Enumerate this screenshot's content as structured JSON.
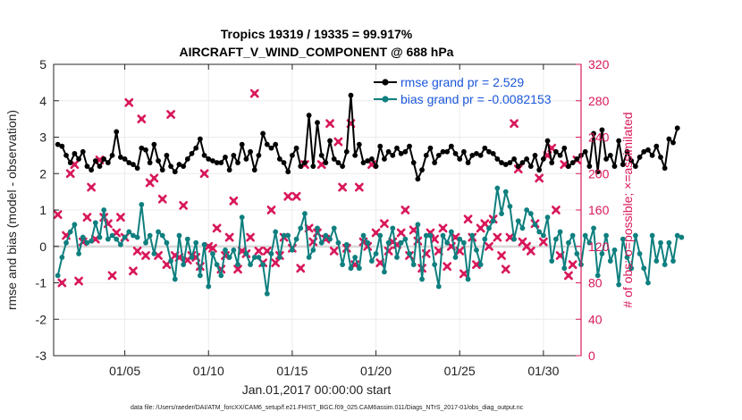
{
  "colors": {
    "rmse": "#000000",
    "bias": "#0f7f7f",
    "obs": "#d8185b",
    "legend_text": "#1a56db",
    "zero_line": "#b0b0b0",
    "axis": "#262626",
    "right_axis": "#d8185b"
  },
  "chart_data": {
    "type": "line",
    "title_line1": "Tropics 19319 / 19335 = 99.917%",
    "title_line2": "AIRCRAFT_V_WIND_COMPONENT @ 688 hPa",
    "xlabel": "Jan.01,2017 00:00:00 start",
    "ylabel_left": "rmse and bias (model - observation)",
    "ylabel_right": "# of obs: o=possible; ×=assimilated",
    "footer": "data file: /Users/raeder/DAI/ATM_forcXX/CAM6_setup/f.e21.FHIST_BGC.f09_025.CAM6assim.011/Diags_NTrS_2017-01/obs_diag_output.nc",
    "xlim": [
      0.75,
      32.25
    ],
    "xticks": [
      {
        "value": 5,
        "label": "01/05"
      },
      {
        "value": 10,
        "label": "01/10"
      },
      {
        "value": 15,
        "label": "01/15"
      },
      {
        "value": 20,
        "label": "01/20"
      },
      {
        "value": 25,
        "label": "01/25"
      },
      {
        "value": 30,
        "label": "01/30"
      }
    ],
    "ylim_left": [
      -3,
      5
    ],
    "yticks_left": [
      -3,
      -2,
      -1,
      0,
      1,
      2,
      3,
      4,
      5
    ],
    "ylim_right": [
      0,
      320
    ],
    "yticks_right": [
      0,
      40,
      80,
      120,
      160,
      200,
      240,
      280,
      320
    ],
    "legend": [
      {
        "series": "rmse",
        "label": "rmse grand pr = 2.529"
      },
      {
        "series": "bias",
        "label": "bias grand pr = -0.0082153"
      }
    ],
    "x_start": 1,
    "x_step": 0.25,
    "rmse": [
      2.8,
      2.75,
      2.5,
      2.3,
      2.55,
      2.4,
      2.6,
      2.2,
      2.1,
      2.35,
      2.2,
      2.4,
      2.3,
      2.5,
      3.15,
      2.45,
      2.4,
      2.3,
      2.25,
      2.15,
      2.7,
      2.65,
      2.3,
      2.8,
      2.35,
      2.1,
      2.5,
      2.2,
      2.05,
      2.25,
      2.2,
      2.4,
      2.55,
      2.7,
      2.95,
      2.5,
      2.4,
      2.35,
      2.3,
      2.3,
      2.45,
      2.1,
      2.5,
      2.3,
      2.8,
      2.4,
      2.6,
      2.1,
      2.5,
      3.1,
      2.8,
      2.7,
      2.8,
      2.4,
      2.3,
      2.05,
      2.5,
      2.7,
      2.2,
      2.3,
      3.6,
      2.2,
      3.4,
      2.5,
      2.3,
      2.9,
      2.4,
      2.3,
      2.2,
      2.6,
      4.15,
      2.5,
      2.8,
      2.3,
      2.35,
      2.4,
      2.2,
      2.75,
      2.4,
      2.6,
      2.5,
      2.7,
      2.55,
      2.6,
      2.75,
      2.3,
      1.85,
      2.1,
      2.5,
      2.7,
      2.3,
      2.5,
      2.6,
      2.6,
      2.75,
      2.55,
      2.4,
      2.6,
      2.3,
      2.5,
      2.55,
      2.5,
      2.7,
      2.6,
      2.55,
      2.4,
      2.3,
      2.25,
      2.3,
      2.4,
      2.2,
      2.3,
      2.4,
      2.2,
      2.5,
      2.1,
      2.4,
      2.9,
      2.3,
      2.6,
      2.5,
      2.7,
      2.2,
      2.3,
      2.4,
      2.5,
      2.6,
      2.2,
      3.1,
      2.05,
      3.2,
      2.4,
      2.5,
      2.2,
      2.9,
      2.25,
      2.6,
      2.35,
      2.2,
      2.45,
      2.6,
      2.65,
      2.5,
      2.75,
      2.45,
      2.15,
      2.95,
      2.85,
      3.25
    ],
    "bias": [
      -0.8,
      -0.3,
      0.1,
      0.4,
      0.6,
      -0.2,
      0.25,
      0.1,
      0.15,
      0.65,
      0.25,
      1.0,
      0.2,
      0.3,
      0.2,
      0.05,
      0.25,
      0.4,
      0.3,
      0.25,
      1.15,
      0.1,
      0.3,
      -0.2,
      0.4,
      0.3,
      0.1,
      -0.4,
      -0.9,
      0.3,
      -0.5,
      0.2,
      -0.3,
      0.1,
      -0.8,
      0.05,
      -1.1,
      -0.2,
      -0.5,
      -0.8,
      -0.1,
      -0.3,
      -0.1,
      -0.5,
      0.8,
      -0.2,
      -0.5,
      -0.3,
      -0.3,
      -0.5,
      -1.3,
      -0.2,
      0.4,
      -0.3,
      0.3,
      0.3,
      -0.1,
      0.2,
      0.5,
      0.9,
      -0.3,
      -0.1,
      0.5,
      0.1,
      0.3,
      0.2,
      0.5,
      0.1,
      -0.5,
      0.05,
      -0.6,
      -0.3,
      -0.6,
      0.3,
      0.1,
      -0.4,
      -0.2,
      0.3,
      -0.7,
      0.1,
      0.5,
      -0.3,
      0.1,
      0.2,
      -0.2,
      -0.5,
      0.6,
      -0.9,
      0.3,
      0.3,
      -0.5,
      -1.1,
      0.3,
      0.1,
      0.4,
      -0.3,
      0.2,
      0.1,
      -0.9,
      0.3,
      -0.1,
      -0.5,
      0.2,
      0.5,
      0.7,
      1.6,
      0.9,
      1.5,
      1.1,
      0.2,
      0.7,
      0.5,
      1.0,
      0.9,
      0.6,
      0.4,
      0.3,
      0.8,
      -0.4,
      0.2,
      0.4,
      -0.6,
      0.1,
      0.3,
      -0.2,
      -0.5,
      0.3,
      0.1,
      0.5,
      -0.8,
      -0.2,
      0.3,
      -0.4,
      -0.1,
      -1.05,
      0.2,
      -0.3,
      -0.6,
      0.3,
      -0.2,
      -0.6,
      -1.0,
      0.3,
      -0.4,
      0.1,
      -0.5,
      0.1,
      -0.4,
      0.3,
      0.25
    ],
    "obs_assimilated_points": [
      [
        1.0,
        155
      ],
      [
        1.25,
        80
      ],
      [
        1.5,
        132
      ],
      [
        1.75,
        200
      ],
      [
        2.0,
        210
      ],
      [
        2.25,
        82
      ],
      [
        2.5,
        125
      ],
      [
        2.75,
        152
      ],
      [
        3.0,
        185
      ],
      [
        3.25,
        128
      ],
      [
        3.5,
        215
      ],
      [
        3.75,
        152
      ],
      [
        4.0,
        145
      ],
      [
        4.25,
        88
      ],
      [
        4.5,
        135
      ],
      [
        4.75,
        152
      ],
      [
        5.0,
        130
      ],
      [
        5.25,
        278
      ],
      [
        5.5,
        93
      ],
      [
        5.75,
        115
      ],
      [
        6.0,
        260
      ],
      [
        6.25,
        110
      ],
      [
        6.5,
        190
      ],
      [
        6.75,
        195
      ],
      [
        7.0,
        110
      ],
      [
        7.25,
        172
      ],
      [
        7.5,
        100
      ],
      [
        7.75,
        265
      ],
      [
        8.0,
        110
      ],
      [
        8.25,
        108
      ],
      [
        8.5,
        165
      ],
      [
        8.75,
        105
      ],
      [
        9.0,
        110
      ],
      [
        9.25,
        108
      ],
      [
        9.5,
        98
      ],
      [
        9.75,
        200
      ],
      [
        10.0,
        120
      ],
      [
        10.25,
        118
      ],
      [
        10.5,
        140
      ],
      [
        10.75,
        95
      ],
      [
        11.0,
        110
      ],
      [
        11.25,
        130
      ],
      [
        11.5,
        170
      ],
      [
        11.75,
        95
      ],
      [
        12.0,
        115
      ],
      [
        12.25,
        112
      ],
      [
        12.5,
        130
      ],
      [
        12.75,
        288
      ],
      [
        13.0,
        115
      ],
      [
        13.25,
        102
      ],
      [
        13.5,
        115
      ],
      [
        13.75,
        160
      ],
      [
        14.0,
        102
      ],
      [
        14.25,
        110
      ],
      [
        14.5,
        130
      ],
      [
        14.75,
        175
      ],
      [
        15.0,
        118
      ],
      [
        15.25,
        175
      ],
      [
        15.5,
        96
      ],
      [
        15.75,
        210
      ],
      [
        16.0,
        140
      ],
      [
        16.25,
        125
      ],
      [
        16.5,
        135
      ],
      [
        16.75,
        210
      ],
      [
        17.0,
        128
      ],
      [
        17.25,
        255
      ],
      [
        17.5,
        115
      ],
      [
        17.75,
        235
      ],
      [
        18.0,
        185
      ],
      [
        18.25,
        118
      ],
      [
        18.5,
        255
      ],
      [
        18.75,
        100
      ],
      [
        19.0,
        185
      ],
      [
        19.25,
        125
      ],
      [
        19.5,
        120
      ],
      [
        19.75,
        210
      ],
      [
        20.0,
        135
      ],
      [
        20.25,
        102
      ],
      [
        20.5,
        145
      ],
      [
        20.75,
        115
      ],
      [
        21.0,
        125
      ],
      [
        21.25,
        122
      ],
      [
        21.5,
        135
      ],
      [
        21.75,
        160
      ],
      [
        22.0,
        110
      ],
      [
        22.25,
        138
      ],
      [
        22.5,
        126
      ],
      [
        22.75,
        96
      ],
      [
        23.0,
        112
      ],
      [
        23.25,
        135
      ],
      [
        23.5,
        128
      ],
      [
        23.75,
        115
      ],
      [
        24.0,
        140
      ],
      [
        24.25,
        98
      ],
      [
        24.5,
        120
      ],
      [
        24.75,
        130
      ],
      [
        25.0,
        115
      ],
      [
        25.25,
        90
      ],
      [
        25.5,
        150
      ],
      [
        25.75,
        130
      ],
      [
        26.0,
        100
      ],
      [
        26.25,
        140
      ],
      [
        26.5,
        145
      ],
      [
        26.75,
        120
      ],
      [
        27.0,
        150
      ],
      [
        27.25,
        130
      ],
      [
        27.5,
        110
      ],
      [
        27.75,
        95
      ],
      [
        28.0,
        130
      ],
      [
        28.25,
        255
      ],
      [
        28.5,
        205
      ],
      [
        28.75,
        125
      ],
      [
        29.0,
        120
      ],
      [
        29.25,
        115
      ],
      [
        29.5,
        145
      ],
      [
        29.75,
        195
      ],
      [
        30.0,
        125
      ],
      [
        30.25,
        220
      ],
      [
        30.5,
        228
      ],
      [
        30.75,
        160
      ],
      [
        31.0,
        110
      ],
      [
        31.25,
        210
      ],
      [
        31.5,
        88
      ],
      [
        31.75,
        100
      ],
      [
        32.0,
        215
      ]
    ]
  }
}
